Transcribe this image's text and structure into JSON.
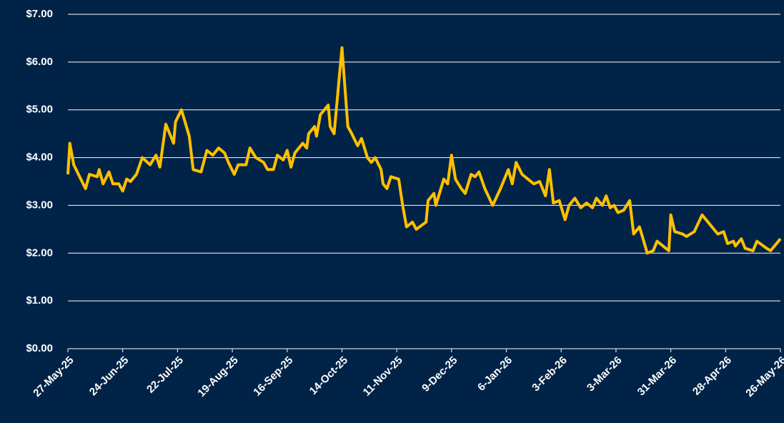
{
  "chart_data": {
    "type": "line",
    "x": [
      "2025-05-27",
      "2025-05-28",
      "2025-05-30",
      "2025-06-02",
      "2025-06-05",
      "2025-06-07",
      "2025-06-11",
      "2025-06-12",
      "2025-06-14",
      "2025-06-17",
      "2025-06-19",
      "2025-06-22",
      "2025-06-24",
      "2025-06-26",
      "2025-06-28",
      "2025-07-01",
      "2025-07-04",
      "2025-07-08",
      "2025-07-11",
      "2025-07-13",
      "2025-07-16",
      "2025-07-20",
      "2025-07-21",
      "2025-07-24",
      "2025-07-28",
      "2025-07-30",
      "2025-08-03",
      "2025-08-06",
      "2025-08-09",
      "2025-08-12",
      "2025-08-15",
      "2025-08-17",
      "2025-08-20",
      "2025-08-22",
      "2025-08-26",
      "2025-08-28",
      "2025-08-31",
      "2025-09-04",
      "2025-09-06",
      "2025-09-09",
      "2025-09-11",
      "2025-09-14",
      "2025-09-16",
      "2025-09-18",
      "2025-09-20",
      "2025-09-24",
      "2025-09-26",
      "2025-09-27",
      "2025-09-30",
      "2025-10-01",
      "2025-10-03",
      "2025-10-07",
      "2025-10-08",
      "2025-10-10",
      "2025-10-14",
      "2025-10-17",
      "2025-10-19",
      "2025-10-22",
      "2025-10-24",
      "2025-10-27",
      "2025-10-29",
      "2025-10-31",
      "2025-11-03",
      "2025-11-04",
      "2025-11-06",
      "2025-11-08",
      "2025-11-12",
      "2025-11-14",
      "2025-11-16",
      "2025-11-19",
      "2025-11-21",
      "2025-11-26",
      "2025-11-27",
      "2025-11-30",
      "2025-12-01",
      "2025-12-05",
      "2025-12-07",
      "2025-12-09",
      "2025-12-11",
      "2025-12-14",
      "2025-12-16",
      "2025-12-19",
      "2025-12-21",
      "2025-12-23",
      "2025-12-26",
      "2025-12-30",
      "2026-01-03",
      "2026-01-07",
      "2026-01-09",
      "2026-01-11",
      "2026-01-14",
      "2026-01-17",
      "2026-01-20",
      "2026-01-23",
      "2026-01-26",
      "2026-01-28",
      "2026-01-30",
      "2026-02-02",
      "2026-02-05",
      "2026-02-07",
      "2026-02-10",
      "2026-02-13",
      "2026-02-16",
      "2026-02-19",
      "2026-02-21",
      "2026-02-24",
      "2026-02-26",
      "2026-02-28",
      "2026-03-02",
      "2026-03-04",
      "2026-03-07",
      "2026-03-10",
      "2026-03-12",
      "2026-03-15",
      "2026-03-19",
      "2026-03-22",
      "2026-03-24",
      "2026-03-30",
      "2026-03-31",
      "2026-04-02",
      "2026-04-06",
      "2026-04-08",
      "2026-04-12",
      "2026-04-16",
      "2026-04-19",
      "2026-04-21",
      "2026-04-24",
      "2026-04-27",
      "2026-04-29",
      "2026-05-02",
      "2026-05-03",
      "2026-05-06",
      "2026-05-08",
      "2026-05-12",
      "2026-05-14",
      "2026-05-19",
      "2026-05-21",
      "2026-05-26"
    ],
    "series": [
      {
        "color": "#ffc000",
        "values": [
          3.65,
          4.3,
          3.85,
          3.6,
          3.35,
          3.65,
          3.6,
          3.75,
          3.45,
          3.7,
          3.45,
          3.45,
          3.3,
          3.55,
          3.5,
          3.65,
          4.0,
          3.85,
          4.05,
          3.8,
          4.7,
          4.3,
          4.75,
          5.0,
          4.45,
          3.75,
          3.7,
          4.15,
          4.05,
          4.2,
          4.1,
          3.9,
          3.65,
          3.85,
          3.85,
          4.2,
          4.0,
          3.9,
          3.75,
          3.75,
          4.05,
          3.95,
          4.15,
          3.8,
          4.1,
          4.3,
          4.2,
          4.5,
          4.65,
          4.45,
          4.9,
          5.1,
          4.65,
          4.5,
          6.3,
          4.65,
          4.5,
          4.25,
          4.4,
          4.0,
          3.9,
          4.0,
          3.75,
          3.45,
          3.35,
          3.6,
          3.55,
          3.0,
          2.55,
          2.65,
          2.5,
          2.65,
          3.1,
          3.25,
          3.0,
          3.55,
          3.45,
          4.05,
          3.55,
          3.35,
          3.25,
          3.65,
          3.6,
          3.7,
          3.35,
          3.0,
          3.35,
          3.75,
          3.45,
          3.9,
          3.65,
          3.55,
          3.45,
          3.5,
          3.2,
          3.75,
          3.05,
          3.1,
          2.7,
          3.0,
          3.15,
          2.95,
          3.05,
          2.95,
          3.15,
          3.0,
          3.2,
          2.95,
          3.0,
          2.85,
          2.9,
          3.1,
          2.4,
          2.55,
          2.0,
          2.05,
          2.25,
          2.05,
          2.8,
          2.45,
          2.4,
          2.35,
          2.45,
          2.8,
          2.65,
          2.55,
          2.4,
          2.45,
          2.2,
          2.25,
          2.15,
          2.3,
          2.1,
          2.05,
          2.25,
          2.1,
          2.05,
          2.3
        ]
      }
    ],
    "xlim": [
      "2025-05-27",
      "2026-05-26"
    ],
    "xticks": [
      {
        "value": "2025-05-27",
        "label": "27-May-25"
      },
      {
        "value": "2025-06-24",
        "label": "24-Jun-25"
      },
      {
        "value": "2025-07-22",
        "label": "22-Jul-25"
      },
      {
        "value": "2025-08-19",
        "label": "19-Aug-25"
      },
      {
        "value": "2025-09-16",
        "label": "16-Sep-25"
      },
      {
        "value": "2025-10-14",
        "label": "14-Oct-25"
      },
      {
        "value": "2025-11-11",
        "label": "11-Nov-25"
      },
      {
        "value": "2025-12-09",
        "label": "9-Dec-25"
      },
      {
        "value": "2026-01-06",
        "label": "6-Jan-26"
      },
      {
        "value": "2026-02-03",
        "label": "3-Feb-26"
      },
      {
        "value": "2026-03-03",
        "label": "3-Mar-26"
      },
      {
        "value": "2026-03-31",
        "label": "31-Mar-26"
      },
      {
        "value": "2026-04-28",
        "label": "28-Apr-26"
      },
      {
        "value": "2026-05-26",
        "label": "26-May-26"
      }
    ],
    "ylim": [
      0,
      7
    ],
    "yticks": [
      {
        "value": 0,
        "label": "$0.00"
      },
      {
        "value": 1,
        "label": "$1.00"
      },
      {
        "value": 2,
        "label": "$2.00"
      },
      {
        "value": 3,
        "label": "$3.00"
      },
      {
        "value": 4,
        "label": "$4.00"
      },
      {
        "value": 5,
        "label": "$5.00"
      },
      {
        "value": 6,
        "label": "$6.00"
      },
      {
        "value": 7,
        "label": "$7.00"
      }
    ],
    "grid": true
  }
}
